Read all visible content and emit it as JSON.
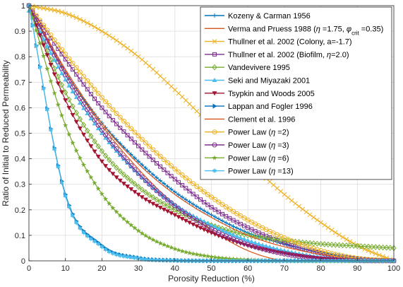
{
  "chart_data": {
    "type": "line",
    "xlabel": "Porosity Reduction (%)",
    "ylabel": "Ratio of Initial to Reduced Permeability",
    "xlim": [
      0,
      100
    ],
    "ylim": [
      0,
      1
    ],
    "xticks": [
      0,
      10,
      20,
      30,
      40,
      50,
      60,
      70,
      80,
      90,
      100
    ],
    "yticks": [
      0,
      0.1,
      0.2,
      0.3,
      0.4,
      0.5,
      0.6,
      0.7,
      0.8,
      0.9,
      1
    ],
    "xtick_labels": [
      "0",
      "10",
      "20",
      "30",
      "40",
      "50",
      "60",
      "70",
      "80",
      "90",
      "100"
    ],
    "ytick_labels": [
      "0",
      "0.1",
      "0.2",
      "0.3",
      "0.4",
      "0.5",
      "0.6",
      "0.7",
      "0.8",
      "0.9",
      "1"
    ],
    "grid": true,
    "legend_position": "top-right",
    "x": [
      0,
      10,
      20,
      30,
      40,
      50,
      60,
      70,
      80,
      90,
      100
    ],
    "series": [
      {
        "name": "Kozeny & Carman 1956",
        "legend_parts": [
          {
            "t": "Kozeny & Carman 1956"
          }
        ],
        "color": "#0072BD",
        "marker": "plus",
        "values": [
          1.0,
          0.74,
          0.54,
          0.39,
          0.27,
          0.18,
          0.11,
          0.066,
          0.033,
          0.011,
          0.0
        ]
      },
      {
        "name": "Verma and Pruess 1988 (η =1.75, φcrit =0.35)",
        "legend_parts": [
          {
            "t": "Verma and Pruess 1988 ("
          },
          {
            "t": "η",
            "i": true
          },
          {
            "t": " =1.75, "
          },
          {
            "t": "φ",
            "i": true
          },
          {
            "t": "crit",
            "sub": true
          },
          {
            "t": " =0.35)"
          }
        ],
        "color": "#D95319",
        "marker": "none",
        "values": [
          1.0,
          0.74,
          0.53,
          0.36,
          0.22,
          0.12,
          0.04,
          0.0,
          0.0,
          0.0,
          0.0
        ]
      },
      {
        "name": "Thullner et al. 2002 (Colony, a=-1.7)",
        "legend_parts": [
          {
            "t": "Thullner et al. 2002 (Colony, a=-1.7)"
          }
        ],
        "color": "#EDB120",
        "marker": "x",
        "values": [
          1.0,
          0.97,
          0.9,
          0.8,
          0.67,
          0.53,
          0.39,
          0.26,
          0.15,
          0.06,
          0.0
        ]
      },
      {
        "name": "Thullner et al. 2002 (Biofilm, η=2.0)",
        "legend_parts": [
          {
            "t": "Thullner et al. 2002 (Biofilm, "
          },
          {
            "t": "η",
            "i": true
          },
          {
            "t": "=2.0)"
          }
        ],
        "color": "#7E2F8E",
        "marker": "square",
        "values": [
          1.0,
          0.79,
          0.6,
          0.45,
          0.32,
          0.21,
          0.13,
          0.07,
          0.03,
          0.008,
          0.0
        ]
      },
      {
        "name": "Vandevivere 1995",
        "legend_parts": [
          {
            "t": "Vandevivere 1995"
          }
        ],
        "color": "#77AC30",
        "marker": "diamond",
        "values": [
          1.0,
          0.66,
          0.43,
          0.29,
          0.2,
          0.14,
          0.1,
          0.08,
          0.066,
          0.058,
          0.05
        ]
      },
      {
        "name": "Seki and Miyazaki 2001",
        "legend_parts": [
          {
            "t": "Seki and Miyazaki 2001"
          }
        ],
        "color": "#4DBEEE",
        "marker": "triangle-up",
        "values": [
          0.98,
          0.71,
          0.5,
          0.34,
          0.22,
          0.14,
          0.08,
          0.04,
          0.015,
          0.004,
          0.0
        ]
      },
      {
        "name": "Tsypkin and Woods 2005",
        "legend_parts": [
          {
            "t": "Tsypkin and Woods 2005"
          }
        ],
        "color": "#A2142F",
        "marker": "triangle-down",
        "values": [
          1.0,
          0.63,
          0.39,
          0.26,
          0.18,
          0.11,
          0.06,
          0.03,
          0.01,
          0.002,
          0.0
        ]
      },
      {
        "name": "Lappan and Fogler 1996",
        "legend_parts": [
          {
            "t": "Lappan and Fogler 1996"
          }
        ],
        "color": "#0072BD",
        "marker": "triangle-right",
        "values": [
          1.0,
          0.26,
          0.06,
          0.012,
          0.002,
          0.0,
          0.0,
          0.0,
          0.0,
          0.0,
          0.0
        ]
      },
      {
        "name": "Clement et al. 1996",
        "legend_parts": [
          {
            "t": "Clement et al. 1996"
          }
        ],
        "color": "#D95319",
        "marker": "none",
        "values": [
          1.0,
          0.75,
          0.54,
          0.38,
          0.26,
          0.17,
          0.1,
          0.055,
          0.025,
          0.007,
          0.0
        ]
      },
      {
        "name": "Power Law (η =2)",
        "legend_parts": [
          {
            "t": "Power Law ("
          },
          {
            "t": "η",
            "i": true
          },
          {
            "t": " =2)"
          }
        ],
        "color": "#EDB120",
        "marker": "circle",
        "values": [
          1.0,
          0.81,
          0.64,
          0.49,
          0.36,
          0.25,
          0.16,
          0.09,
          0.04,
          0.01,
          0.0
        ]
      },
      {
        "name": "Power Law (η =3)",
        "legend_parts": [
          {
            "t": "Power Law ("
          },
          {
            "t": "η",
            "i": true
          },
          {
            "t": " =3)"
          }
        ],
        "color": "#7E2F8E",
        "marker": "circle",
        "values": [
          1.0,
          0.729,
          0.512,
          0.343,
          0.216,
          0.125,
          0.064,
          0.027,
          0.008,
          0.001,
          0.0
        ]
      },
      {
        "name": "Power Law (η =6)",
        "legend_parts": [
          {
            "t": "Power Law ("
          },
          {
            "t": "η",
            "i": true
          },
          {
            "t": " =6)"
          }
        ],
        "color": "#77AC30",
        "marker": "star",
        "values": [
          1.0,
          0.531,
          0.262,
          0.118,
          0.047,
          0.016,
          0.004,
          0.0007,
          0.0,
          0.0,
          0.0
        ]
      },
      {
        "name": "Power Law (η =13)",
        "legend_parts": [
          {
            "t": "Power Law ("
          },
          {
            "t": "η",
            "i": true
          },
          {
            "t": " =13)"
          }
        ],
        "color": "#4DBEEE",
        "marker": "hexagram",
        "values": [
          1.0,
          0.254,
          0.055,
          0.0097,
          0.0013,
          0.0001,
          0.0,
          0.0,
          0.0,
          0.0,
          0.0
        ]
      }
    ]
  }
}
